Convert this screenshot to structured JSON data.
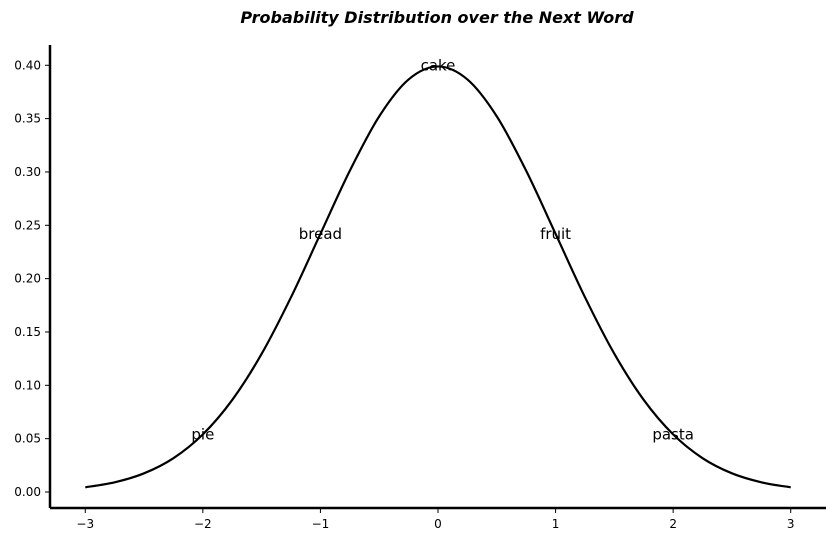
{
  "chart_data": {
    "type": "line",
    "title": "Probability Distribution over the Next Word",
    "xlabel": "",
    "ylabel": "",
    "xlim": [
      -3.3,
      3.3
    ],
    "ylim": [
      -0.015,
      0.419
    ],
    "grid": false,
    "x_ticks": [
      -3,
      -2,
      -1,
      0,
      1,
      2,
      3
    ],
    "x_tick_labels": [
      "−3",
      "−2",
      "−1",
      "0",
      "1",
      "2",
      "3"
    ],
    "y_ticks": [
      0.0,
      0.05,
      0.1,
      0.15,
      0.2,
      0.25,
      0.3,
      0.35,
      0.4
    ],
    "y_tick_labels": [
      "0.00",
      "0.05",
      "0.10",
      "0.15",
      "0.20",
      "0.25",
      "0.30",
      "0.35",
      "0.40"
    ],
    "series": [
      {
        "color": "#000000",
        "x": [
          -3.0,
          -2.75,
          -2.5,
          -2.25,
          -2.0,
          -1.75,
          -1.5,
          -1.25,
          -1.0,
          -0.75,
          -0.5,
          -0.25,
          0.0,
          0.25,
          0.5,
          0.75,
          1.0,
          1.25,
          1.5,
          1.75,
          2.0,
          2.25,
          2.5,
          2.75,
          3.0
        ],
        "y": [
          0.0044,
          0.0091,
          0.0175,
          0.0317,
          0.054,
          0.0863,
          0.1295,
          0.1826,
          0.242,
          0.3011,
          0.3521,
          0.3867,
          0.3989,
          0.3867,
          0.3521,
          0.3011,
          0.242,
          0.1826,
          0.1295,
          0.0863,
          0.054,
          0.0317,
          0.0175,
          0.0091,
          0.0044
        ]
      }
    ],
    "annotations": [
      {
        "text": "cake",
        "x": 0.0,
        "y": 0.4
      },
      {
        "text": "bread",
        "x": -1.0,
        "y": 0.242
      },
      {
        "text": "fruit",
        "x": 1.0,
        "y": 0.242
      },
      {
        "text": "pie",
        "x": -2.0,
        "y": 0.054
      },
      {
        "text": "pasta",
        "x": 2.0,
        "y": 0.054
      }
    ]
  }
}
